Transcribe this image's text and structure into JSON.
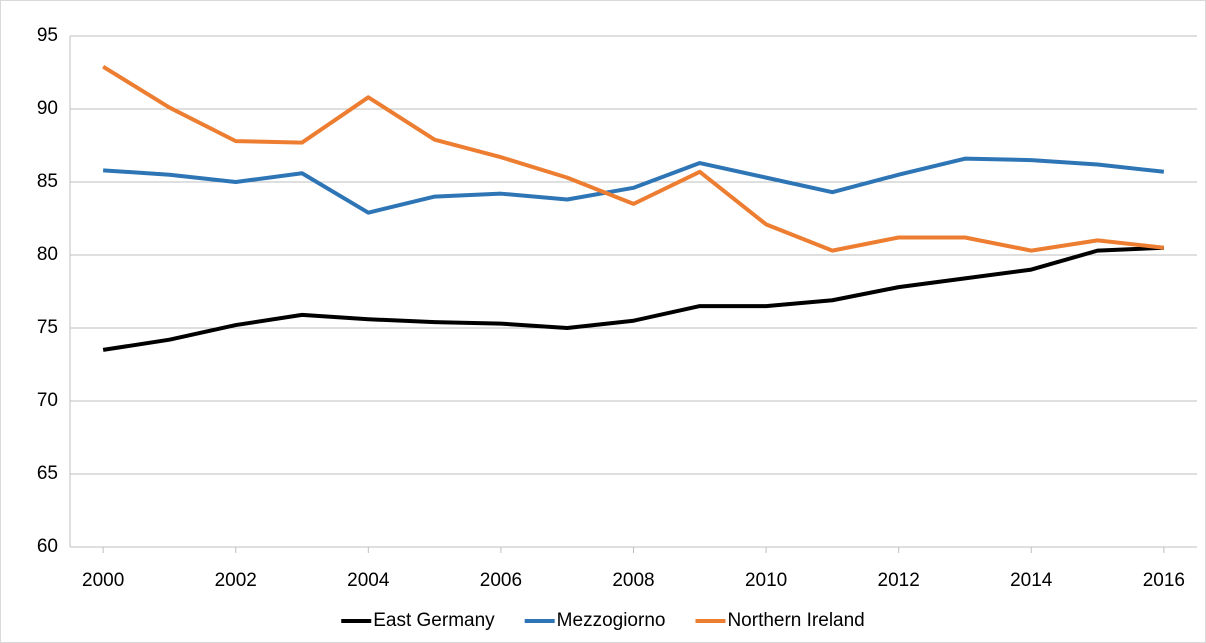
{
  "chart_data": {
    "type": "line",
    "x": [
      2000,
      2001,
      2002,
      2003,
      2004,
      2005,
      2006,
      2007,
      2008,
      2009,
      2010,
      2011,
      2012,
      2013,
      2014,
      2015,
      2016
    ],
    "xlim": [
      1999.5,
      2016.5
    ],
    "xticks": [
      2000,
      2002,
      2004,
      2006,
      2008,
      2010,
      2012,
      2014,
      2016
    ],
    "ylim": [
      60,
      95
    ],
    "yticks": [
      60,
      65,
      70,
      75,
      80,
      85,
      90,
      95
    ],
    "grid": true,
    "legend": "bottom",
    "series": [
      {
        "name": "East Germany",
        "color": "#000000",
        "values": [
          73.5,
          74.2,
          75.2,
          75.9,
          75.6,
          75.4,
          75.3,
          75.0,
          75.5,
          76.5,
          76.5,
          76.9,
          77.8,
          78.4,
          79.0,
          80.3,
          80.5
        ]
      },
      {
        "name": "Mezzogiorno",
        "color": "#2e75b6",
        "values": [
          85.8,
          85.5,
          85.0,
          85.6,
          82.9,
          84.0,
          84.2,
          83.8,
          84.6,
          86.3,
          85.3,
          84.3,
          85.5,
          86.6,
          86.5,
          86.2,
          85.7
        ]
      },
      {
        "name": "Northern Ireland",
        "color": "#ed7d31",
        "values": [
          92.9,
          90.1,
          87.8,
          87.7,
          90.8,
          87.9,
          86.7,
          85.3,
          83.5,
          85.7,
          82.1,
          80.3,
          81.2,
          81.2,
          80.3,
          81.0,
          80.5
        ]
      }
    ]
  }
}
